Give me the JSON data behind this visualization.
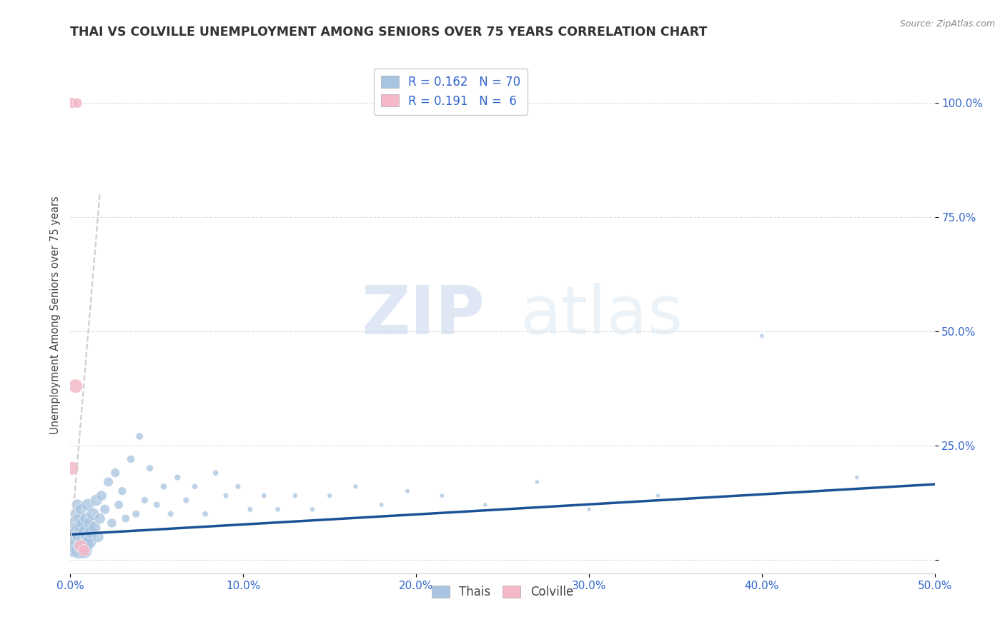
{
  "title": "THAI VS COLVILLE UNEMPLOYMENT AMONG SENIORS OVER 75 YEARS CORRELATION CHART",
  "source": "Source: ZipAtlas.com",
  "ylabel": "Unemployment Among Seniors over 75 years",
  "xlim": [
    0,
    0.5
  ],
  "ylim": [
    -0.03,
    1.1
  ],
  "watermark_left": "ZIP",
  "watermark_right": "atlas",
  "legend_thai_R": "0.162",
  "legend_thai_N": "70",
  "legend_colville_R": "0.191",
  "legend_colville_N": "6",
  "thai_color": "#a8c4e0",
  "thai_line_color": "#1a5296",
  "colville_color": "#f4b8c8",
  "thai_scatter_x": [
    0.001,
    0.002,
    0.002,
    0.003,
    0.003,
    0.003,
    0.004,
    0.004,
    0.004,
    0.005,
    0.005,
    0.005,
    0.006,
    0.006,
    0.006,
    0.007,
    0.007,
    0.008,
    0.008,
    0.009,
    0.009,
    0.01,
    0.01,
    0.011,
    0.011,
    0.012,
    0.013,
    0.014,
    0.015,
    0.016,
    0.017,
    0.018,
    0.02,
    0.022,
    0.024,
    0.026,
    0.028,
    0.03,
    0.032,
    0.035,
    0.038,
    0.04,
    0.043,
    0.046,
    0.05,
    0.054,
    0.058,
    0.062,
    0.067,
    0.072,
    0.078,
    0.084,
    0.09,
    0.097,
    0.104,
    0.112,
    0.12,
    0.13,
    0.14,
    0.15,
    0.165,
    0.18,
    0.195,
    0.215,
    0.24,
    0.27,
    0.3,
    0.34,
    0.4,
    0.455
  ],
  "thai_scatter_y": [
    0.05,
    0.02,
    0.08,
    0.03,
    0.06,
    0.1,
    0.04,
    0.07,
    0.12,
    0.02,
    0.05,
    0.09,
    0.03,
    0.07,
    0.11,
    0.04,
    0.08,
    0.02,
    0.06,
    0.03,
    0.09,
    0.05,
    0.12,
    0.04,
    0.08,
    0.06,
    0.1,
    0.07,
    0.13,
    0.05,
    0.09,
    0.14,
    0.11,
    0.17,
    0.08,
    0.19,
    0.12,
    0.15,
    0.09,
    0.22,
    0.1,
    0.27,
    0.13,
    0.2,
    0.12,
    0.16,
    0.1,
    0.18,
    0.13,
    0.16,
    0.1,
    0.19,
    0.14,
    0.16,
    0.11,
    0.14,
    0.11,
    0.14,
    0.11,
    0.14,
    0.16,
    0.12,
    0.15,
    0.14,
    0.12,
    0.17,
    0.11,
    0.14,
    0.49,
    0.18
  ],
  "thai_scatter_sizes": [
    300,
    200,
    150,
    250,
    180,
    120,
    220,
    160,
    130,
    280,
    190,
    140,
    240,
    170,
    125,
    200,
    155,
    260,
    175,
    215,
    145,
    195,
    155,
    210,
    150,
    175,
    160,
    150,
    140,
    130,
    120,
    110,
    100,
    95,
    90,
    85,
    80,
    75,
    70,
    65,
    60,
    55,
    50,
    50,
    45,
    45,
    40,
    40,
    40,
    35,
    35,
    35,
    30,
    30,
    30,
    28,
    28,
    26,
    26,
    24,
    24,
    22,
    22,
    20,
    20,
    20,
    18,
    18,
    18,
    18
  ],
  "colville_scatter_x": [
    0.001,
    0.004,
    0.001,
    0.003,
    0.006,
    0.008
  ],
  "colville_scatter_y": [
    1.0,
    1.0,
    0.2,
    0.38,
    0.03,
    0.02
  ],
  "colville_scatter_sizes": [
    120,
    100,
    180,
    200,
    160,
    140
  ],
  "thai_trendline_x": [
    0.0,
    0.5
  ],
  "thai_trendline_y": [
    0.055,
    0.165
  ],
  "colville_trendline_x": [
    0.0,
    0.017
  ],
  "colville_trendline_y": [
    0.03,
    0.8
  ]
}
